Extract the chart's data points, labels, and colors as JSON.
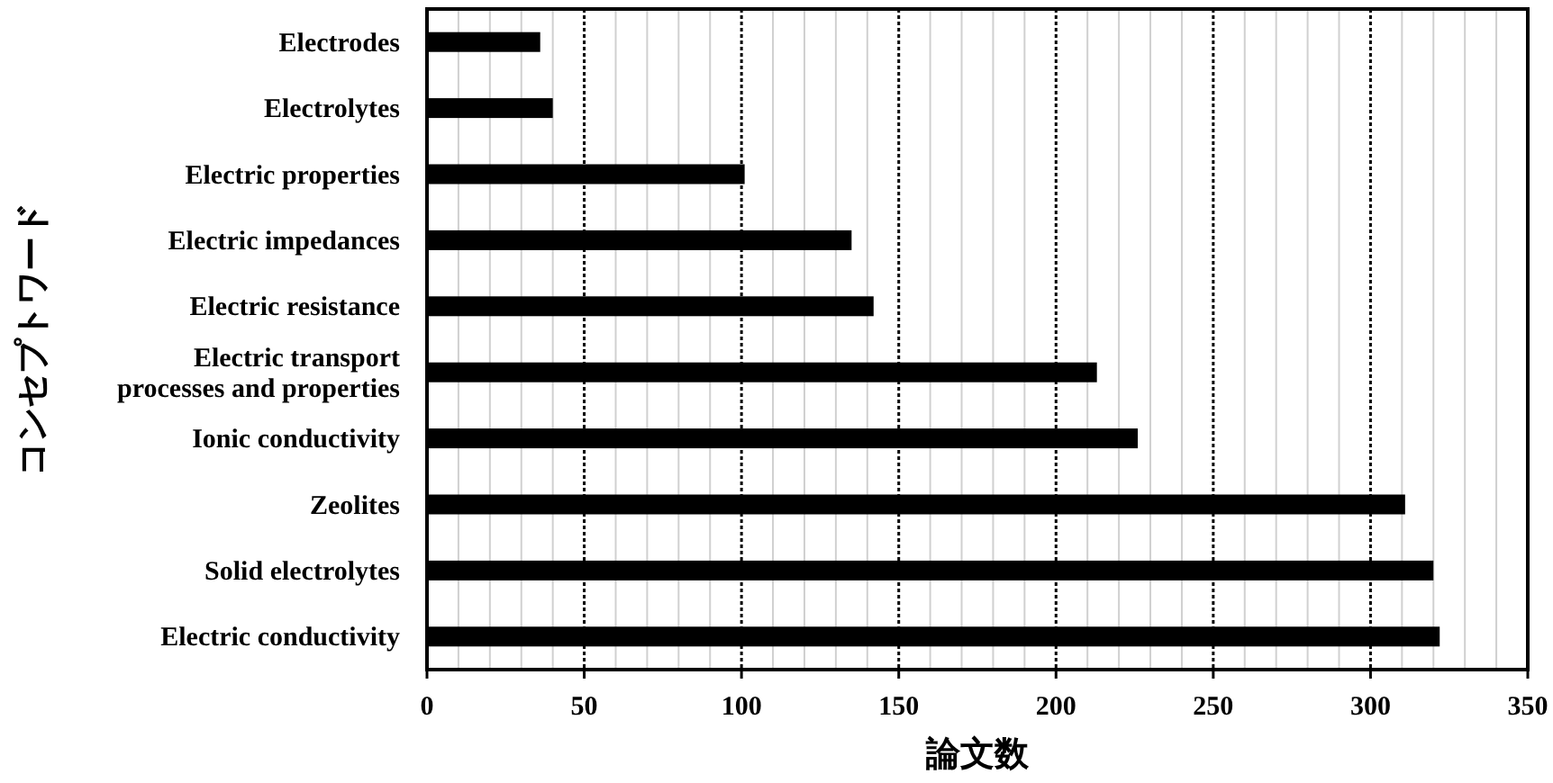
{
  "chart_data": {
    "type": "bar",
    "orientation": "horizontal",
    "xlabel": "論文数",
    "ylabel": "コンセプトワード",
    "categories": [
      "Electrodes",
      "Electrolytes",
      "Electric properties",
      "Electric impedances",
      "Electric resistance",
      "Electric transport\nprocesses and properties",
      "Ionic conductivity",
      "Zeolites",
      "Solid electrolytes",
      "Electric conductivity"
    ],
    "values": [
      36,
      40,
      101,
      135,
      142,
      213,
      226,
      311,
      320,
      322
    ],
    "color": "#000000",
    "xlim": [
      0,
      350
    ],
    "xticks": [
      0,
      50,
      100,
      150,
      200,
      250,
      300,
      350
    ],
    "grid": "x"
  }
}
